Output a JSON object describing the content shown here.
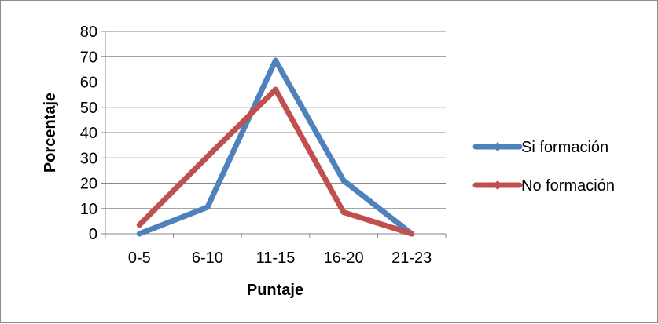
{
  "chart_data": {
    "type": "line",
    "categories": [
      "0-5",
      "6-10",
      "11-15",
      "16-20",
      "21-23"
    ],
    "series": [
      {
        "name": "Si formación",
        "values": [
          0,
          10.5,
          68.5,
          21,
          0
        ],
        "color": "#4f81bd"
      },
      {
        "name": "No formación",
        "values": [
          3.5,
          30.5,
          57,
          8.5,
          0
        ],
        "color": "#c0504d"
      }
    ],
    "xlabel": "Puntaje",
    "ylabel": "Porcentaje",
    "ylim": [
      0,
      80
    ],
    "yticks": [
      0,
      10,
      20,
      30,
      40,
      50,
      60,
      70,
      80
    ],
    "grid": true,
    "legend": "right"
  }
}
